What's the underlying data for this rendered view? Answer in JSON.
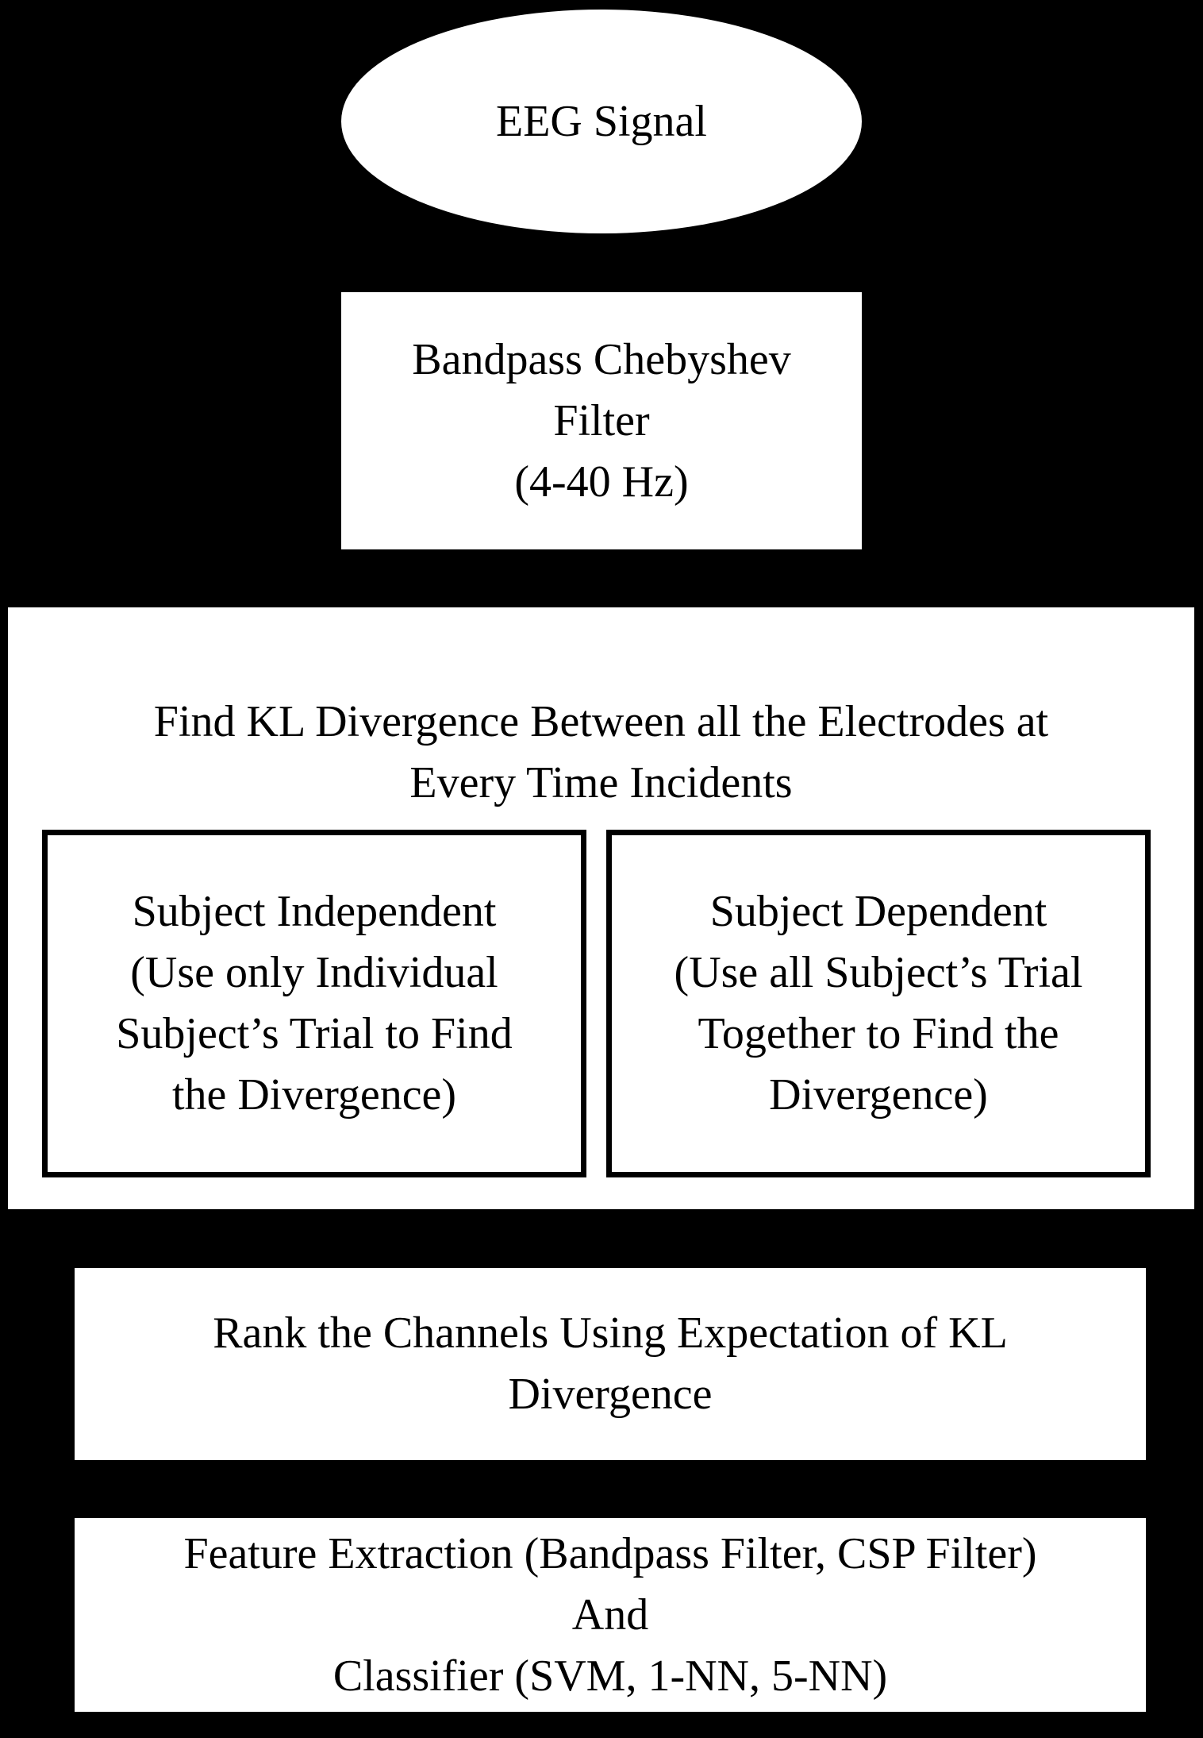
{
  "diagram": {
    "nodes": {
      "input": {
        "shape": "ellipse",
        "label": "EEG Signal"
      },
      "filter": {
        "shape": "box",
        "label": "Bandpass Chebyshev\nFilter\n(4-40 Hz)"
      },
      "kl": {
        "shape": "container",
        "title": "Find KL Divergence Between all the Electrodes at\nEvery Time Incidents",
        "children": {
          "subject_independent": {
            "label": "Subject Independent\n(Use only Individual\nSubject’s Trial to Find\nthe Divergence)"
          },
          "subject_dependent": {
            "label": "Subject Dependent\n(Use all Subject’s Trial\nTogether to Find the\nDivergence)"
          }
        }
      },
      "rank": {
        "shape": "box",
        "label": "Rank the Channels Using Expectation of KL\nDivergence"
      },
      "feature": {
        "shape": "box",
        "label": "Feature Extraction (Bandpass Filter, CSP Filter)\nAnd\nClassifier (SVM, 1-NN, 5-NN)"
      }
    },
    "colors": {
      "background": "#000000",
      "box_fill": "#ffffff",
      "text": "#000000",
      "border": "#000000"
    }
  }
}
